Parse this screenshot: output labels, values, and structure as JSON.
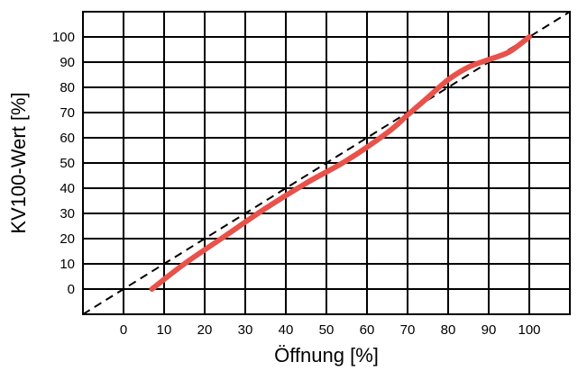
{
  "chart_data": {
    "type": "line",
    "title": "",
    "xlabel": "Öffnung [%]",
    "ylabel": "KV100-Wert [%]",
    "xlim": [
      -10,
      110
    ],
    "ylim": [
      -10,
      110
    ],
    "x_ticks": [
      0,
      10,
      20,
      30,
      40,
      50,
      60,
      70,
      80,
      90,
      100
    ],
    "y_ticks": [
      0,
      10,
      20,
      30,
      40,
      50,
      60,
      70,
      80,
      90,
      100
    ],
    "x_tick_labels": [
      "0",
      "10",
      "20",
      "30",
      "40",
      "50",
      "60",
      "70",
      "80",
      "90",
      "100"
    ],
    "y_tick_labels": [
      "0",
      "10",
      "20",
      "30",
      "40",
      "50",
      "60",
      "70",
      "80",
      "90",
      "100"
    ],
    "grid": true,
    "legend": "none",
    "series": [
      {
        "style": "solid",
        "color": "#e8524a",
        "x": [
          7,
          15,
          25,
          35,
          45,
          55,
          65,
          70,
          75,
          80,
          85,
          90,
          95,
          100
        ],
        "y": [
          0,
          10,
          21,
          32,
          42,
          51,
          62,
          69,
          76,
          83,
          88,
          91,
          94,
          100
        ]
      },
      {
        "style": "dashed",
        "color": "#000000",
        "x": [
          -10,
          110
        ],
        "y": [
          -10,
          110
        ]
      }
    ]
  }
}
